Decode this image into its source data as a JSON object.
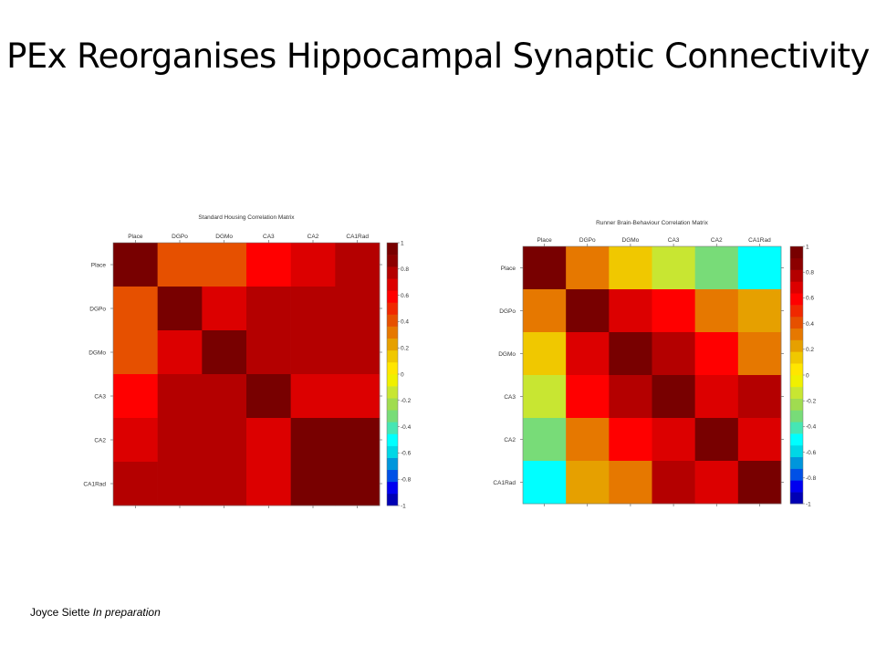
{
  "slide": {
    "title": "PEx Reorganises Hippocampal Synaptic Connectivity",
    "footer_author": "Joyce Siette",
    "footer_status": "In preparation"
  },
  "colorbar": {
    "ticks": [
      "1",
      "0.8",
      "0.6",
      "0.4",
      "0.2",
      "0",
      "-0.2",
      "-0.4",
      "-0.6",
      "-0.8",
      "-1"
    ],
    "range": [
      -1,
      1
    ],
    "colors": [
      "#0000b4",
      "#0000f0",
      "#0050e6",
      "#0096dc",
      "#00d7e6",
      "#00ffff",
      "#46e6b4",
      "#78dc78",
      "#a0dc50",
      "#c8e632",
      "#f0f000",
      "#ffe600",
      "#f0c800",
      "#e6a000",
      "#e67800",
      "#e65000",
      "#f02800",
      "#ff0000",
      "#dc0000",
      "#b40000",
      "#8c0000",
      "#780000"
    ]
  },
  "chart_data": [
    {
      "type": "heatmap",
      "title": "Standard Housing Correlation Matrix",
      "col_labels": [
        "Place",
        "DGPo",
        "DGMo",
        "CA3",
        "CA2",
        "CA1Rad"
      ],
      "row_labels": [
        "Place",
        "DGPo",
        "DGMo",
        "CA3",
        "CA2",
        "CA1Rad"
      ],
      "values": [
        [
          1.0,
          0.45,
          0.45,
          0.58,
          0.65,
          0.8
        ],
        [
          0.45,
          1.0,
          0.7,
          0.8,
          0.8,
          0.8
        ],
        [
          0.45,
          0.72,
          1.0,
          0.8,
          0.8,
          0.8
        ],
        [
          0.58,
          0.8,
          0.8,
          1.0,
          0.72,
          0.65
        ],
        [
          0.65,
          0.8,
          0.8,
          0.72,
          1.0,
          1.0
        ],
        [
          0.8,
          0.8,
          0.8,
          0.65,
          1.0,
          1.0
        ]
      ],
      "colorbar_range": [
        -1,
        1
      ]
    },
    {
      "type": "heatmap",
      "title": "Runner Brain-Behaviour Correlation Matrix",
      "col_labels": [
        "Place",
        "DGPo",
        "DGMo",
        "CA3",
        "CA2",
        "CA1Rad"
      ],
      "row_labels": [
        "Place",
        "DGPo",
        "DGMo",
        "CA3",
        "CA2",
        "CA1Rad"
      ],
      "values": [
        [
          1.0,
          0.3,
          0.15,
          -0.1,
          -0.35,
          -0.5
        ],
        [
          0.3,
          1.0,
          0.65,
          0.6,
          0.3,
          0.2
        ],
        [
          0.15,
          0.65,
          1.0,
          0.8,
          0.6,
          0.35
        ],
        [
          -0.1,
          0.6,
          0.8,
          1.0,
          0.72,
          0.8
        ],
        [
          -0.35,
          0.3,
          0.6,
          0.72,
          1.0,
          0.72
        ],
        [
          -0.5,
          0.2,
          0.35,
          0.8,
          0.72,
          1.0
        ]
      ],
      "colorbar_range": [
        -1,
        1
      ]
    }
  ]
}
